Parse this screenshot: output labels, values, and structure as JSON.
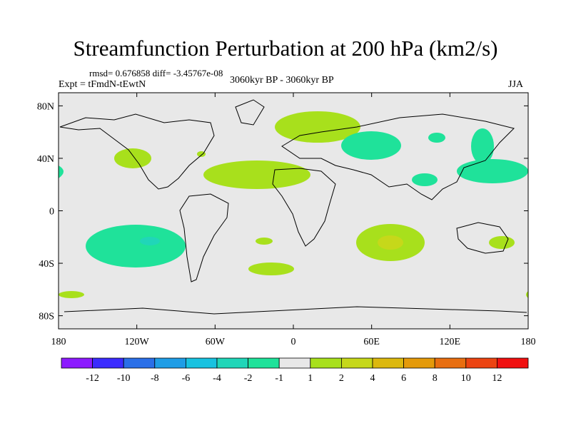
{
  "title": "Streamfunction Perturbation at 200 hPa (km2/s)",
  "stats_line": "rmsd= 0.676858 diff= -3.45767e-08",
  "experiment": "Expt = tFmdN-tEwtN",
  "period": "3060kyr BP - 3060kyr BP",
  "season": "JJA",
  "lat_labels": [
    "80N",
    "40N",
    "0",
    "40S",
    "80S"
  ],
  "lon_labels": [
    "180",
    "120W",
    "60W",
    "0",
    "60E",
    "120E",
    "180"
  ],
  "colorbar": {
    "labels": [
      "-12",
      "-10",
      "-8",
      "-6",
      "-4",
      "-2",
      "-1",
      "1",
      "2",
      "4",
      "6",
      "8",
      "10",
      "12"
    ],
    "colors": [
      "#8c1aff",
      "#3b2bff",
      "#2a6fe8",
      "#1f9de6",
      "#18c2e0",
      "#20d6b8",
      "#1fe29a",
      "#e8e8e8",
      "#a8e01c",
      "#c6d81a",
      "#dcb80e",
      "#e49a0a",
      "#e86e10",
      "#ec4412",
      "#f01010"
    ]
  },
  "colors": {
    "background": "#e8e8e8",
    "pos_weak": "#a8e01c",
    "neg_weak": "#1fe29a",
    "pos_mid": "#c6d81a",
    "neg_mid": "#20d6b8"
  }
}
